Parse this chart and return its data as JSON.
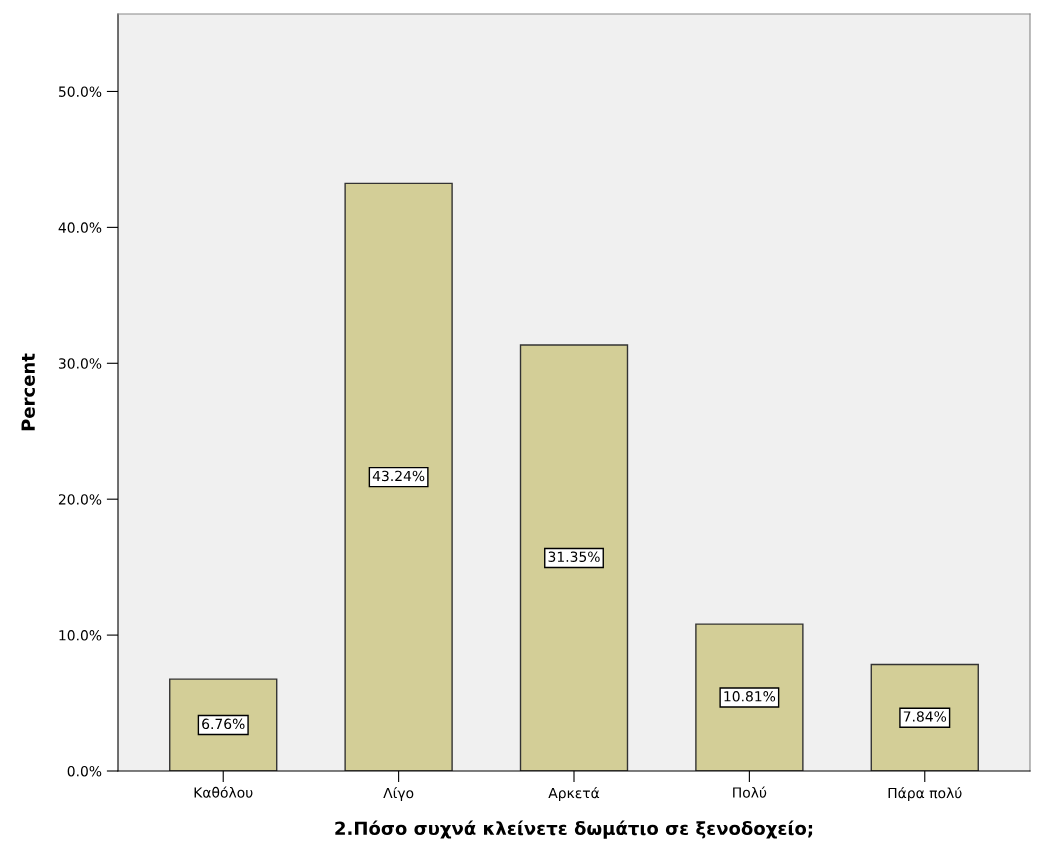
{
  "chart_data": {
    "type": "bar",
    "xlabel": "2.Πόσο συχνά κλείνετε δωμάτιο σε ξενοδοχείο;",
    "ylabel": "Percent",
    "categories": [
      "Καθόλου",
      "Λίγο",
      "Αρκετά",
      "Πολύ",
      "Πάρα πολύ"
    ],
    "values": [
      6.76,
      43.24,
      31.35,
      10.81,
      7.84
    ],
    "value_labels": [
      "6.76%",
      "43.24%",
      "31.35%",
      "10.81%",
      "7.84%"
    ],
    "color": "#d3ce97",
    "ylim": [
      0,
      55.7
    ],
    "yticks": [
      {
        "value": 0,
        "label": "0.0%"
      },
      {
        "value": 10,
        "label": "10.0%"
      },
      {
        "value": 20,
        "label": "20.0%"
      },
      {
        "value": 30,
        "label": "30.0%"
      },
      {
        "value": 40,
        "label": "40.0%"
      },
      {
        "value": 50,
        "label": "50.0%"
      }
    ],
    "grid": false
  }
}
